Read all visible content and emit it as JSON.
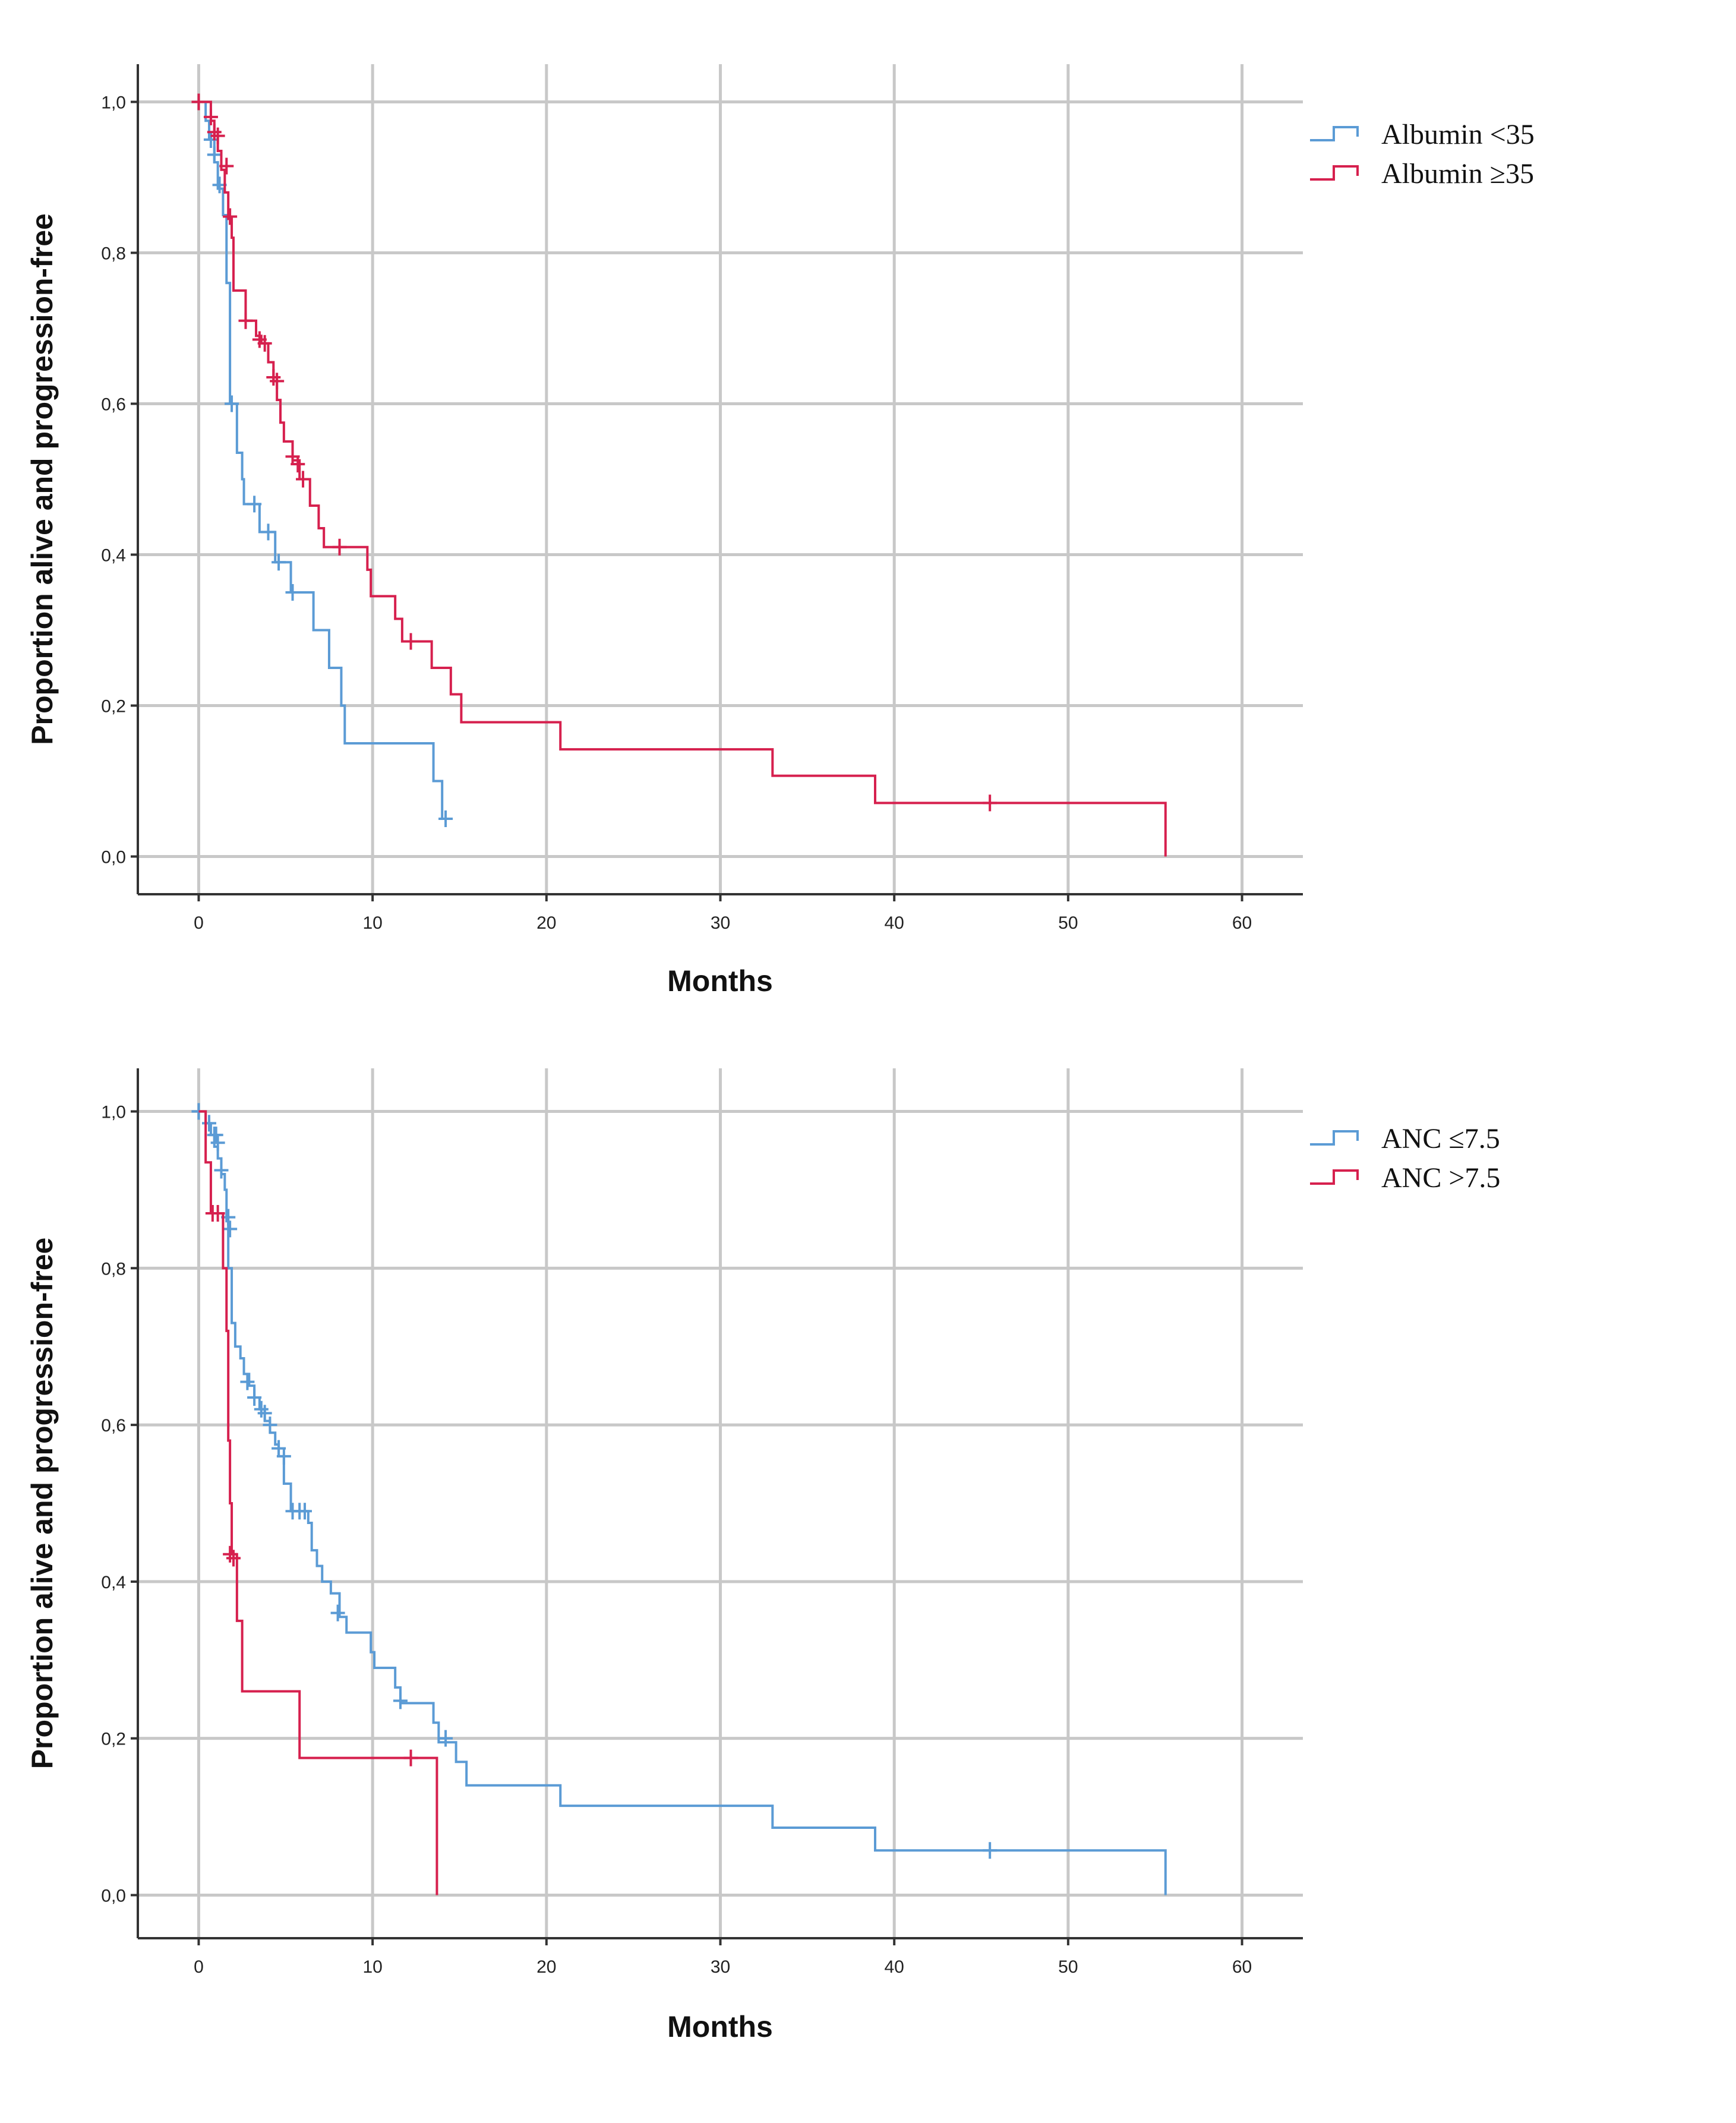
{
  "chart_data": [
    {
      "type": "line",
      "subtype": "kaplan-meier",
      "title": "",
      "xlabel": "Months",
      "ylabel": "Proportion alive and progression-free",
      "xlim": [
        -3.5,
        63.5
      ],
      "ylim": [
        -0.05,
        1.05
      ],
      "xticks": [
        0,
        10,
        20,
        30,
        40,
        50,
        60
      ],
      "xtick_labels": [
        "0",
        "10",
        "20",
        "30",
        "40",
        "50",
        "60"
      ],
      "yticks": [
        0,
        0.2,
        0.4,
        0.6,
        0.8,
        1.0
      ],
      "ytick_labels": [
        "0,0",
        "0,2",
        "0,4",
        "0,6",
        "0,8",
        "1,0"
      ],
      "grid": true,
      "legend_position": "top-right-outside",
      "series": [
        {
          "name": "Albumin <35",
          "color": "#5b9bd5",
          "steps": [
            [
              0,
              1.0
            ],
            [
              0.4,
              0.975
            ],
            [
              0.6,
              0.95
            ],
            [
              0.9,
              0.92
            ],
            [
              1.1,
              0.885
            ],
            [
              1.4,
              0.85
            ],
            [
              1.6,
              0.76
            ],
            [
              1.8,
              0.6
            ],
            [
              2.2,
              0.535
            ],
            [
              2.5,
              0.5
            ],
            [
              2.6,
              0.467
            ],
            [
              3.4,
              0.467
            ],
            [
              3.5,
              0.43
            ],
            [
              4.3,
              0.43
            ],
            [
              4.4,
              0.39
            ],
            [
              5.2,
              0.39
            ],
            [
              5.3,
              0.35
            ],
            [
              6.5,
              0.35
            ],
            [
              6.6,
              0.3
            ],
            [
              7.4,
              0.3
            ],
            [
              7.5,
              0.25
            ],
            [
              8.0,
              0.25
            ],
            [
              8.2,
              0.2
            ],
            [
              8.4,
              0.15
            ],
            [
              13.4,
              0.15
            ],
            [
              13.5,
              0.1
            ],
            [
              13.9,
              0.1
            ],
            [
              14.0,
              0.05
            ],
            [
              14.3,
              0.05
            ]
          ],
          "censored": [
            [
              0.7,
              0.95
            ],
            [
              0.9,
              0.93
            ],
            [
              1.2,
              0.89
            ],
            [
              1.9,
              0.6
            ],
            [
              3.2,
              0.467
            ],
            [
              4.0,
              0.43
            ],
            [
              4.6,
              0.39
            ],
            [
              5.4,
              0.35
            ],
            [
              14.2,
              0.05
            ]
          ]
        },
        {
          "name": "Albumin ≥35",
          "color": "#d6204e",
          "steps": [
            [
              0,
              1.0
            ],
            [
              0.6,
              1.0
            ],
            [
              0.7,
              0.975
            ],
            [
              0.9,
              0.955
            ],
            [
              1.1,
              0.935
            ],
            [
              1.3,
              0.91
            ],
            [
              1.5,
              0.88
            ],
            [
              1.7,
              0.845
            ],
            [
              1.9,
              0.82
            ],
            [
              2.0,
              0.75
            ],
            [
              2.6,
              0.75
            ],
            [
              2.7,
              0.71
            ],
            [
              3.3,
              0.69
            ],
            [
              3.6,
              0.68
            ],
            [
              4.0,
              0.655
            ],
            [
              4.3,
              0.63
            ],
            [
              4.5,
              0.605
            ],
            [
              4.7,
              0.575
            ],
            [
              4.9,
              0.55
            ],
            [
              5.4,
              0.525
            ],
            [
              5.8,
              0.5
            ],
            [
              6.4,
              0.465
            ],
            [
              6.9,
              0.435
            ],
            [
              7.2,
              0.41
            ],
            [
              9.5,
              0.41
            ],
            [
              9.7,
              0.38
            ],
            [
              9.9,
              0.345
            ],
            [
              11.1,
              0.345
            ],
            [
              11.3,
              0.315
            ],
            [
              11.7,
              0.285
            ],
            [
              13.2,
              0.285
            ],
            [
              13.4,
              0.25
            ],
            [
              14.3,
              0.25
            ],
            [
              14.5,
              0.215
            ],
            [
              14.9,
              0.215
            ],
            [
              15.1,
              0.178
            ],
            [
              20.7,
              0.178
            ],
            [
              20.8,
              0.142
            ],
            [
              32.8,
              0.142
            ],
            [
              33.0,
              0.107
            ],
            [
              38.7,
              0.107
            ],
            [
              38.9,
              0.071
            ],
            [
              55.5,
              0.071
            ],
            [
              55.6,
              0.0
            ]
          ],
          "censored": [
            [
              0,
              1.0
            ],
            [
              0.7,
              0.98
            ],
            [
              0.9,
              0.96
            ],
            [
              1.1,
              0.955
            ],
            [
              1.6,
              0.915
            ],
            [
              1.8,
              0.848
            ],
            [
              2.7,
              0.71
            ],
            [
              3.5,
              0.685
            ],
            [
              3.8,
              0.68
            ],
            [
              4.3,
              0.635
            ],
            [
              4.5,
              0.63
            ],
            [
              5.4,
              0.53
            ],
            [
              5.7,
              0.52
            ],
            [
              6.0,
              0.5
            ],
            [
              8.1,
              0.41
            ],
            [
              12.2,
              0.285
            ],
            [
              45.5,
              0.071
            ]
          ]
        }
      ]
    },
    {
      "type": "line",
      "subtype": "kaplan-meier",
      "title": "",
      "xlabel": "Months",
      "ylabel": "Proportion alive and progression-free",
      "xlim": [
        -3.5,
        63.5
      ],
      "ylim": [
        -0.055,
        1.055
      ],
      "xticks": [
        0,
        10,
        20,
        30,
        40,
        50,
        60
      ],
      "xtick_labels": [
        "0",
        "10",
        "20",
        "30",
        "40",
        "50",
        "60"
      ],
      "yticks": [
        0,
        0.2,
        0.4,
        0.6,
        0.8,
        1.0
      ],
      "ytick_labels": [
        "0,0",
        "0,2",
        "0,4",
        "0,6",
        "0,8",
        "1,0"
      ],
      "grid": true,
      "legend_position": "top-right-outside",
      "series": [
        {
          "name": "ANC ≤7.5",
          "color": "#5b9bd5",
          "steps": [
            [
              0,
              1.0
            ],
            [
              0.4,
              0.985
            ],
            [
              0.7,
              0.97
            ],
            [
              0.9,
              0.955
            ],
            [
              1.1,
              0.94
            ],
            [
              1.3,
              0.92
            ],
            [
              1.5,
              0.9
            ],
            [
              1.6,
              0.86
            ],
            [
              1.7,
              0.8
            ],
            [
              1.9,
              0.73
            ],
            [
              2.1,
              0.7
            ],
            [
              2.4,
              0.685
            ],
            [
              2.6,
              0.665
            ],
            [
              2.9,
              0.65
            ],
            [
              3.2,
              0.635
            ],
            [
              3.5,
              0.62
            ],
            [
              3.8,
              0.605
            ],
            [
              4.1,
              0.59
            ],
            [
              4.4,
              0.575
            ],
            [
              4.6,
              0.56
            ],
            [
              4.9,
              0.525
            ],
            [
              5.3,
              0.49
            ],
            [
              5.7,
              0.49
            ],
            [
              6.3,
              0.475
            ],
            [
              6.5,
              0.44
            ],
            [
              6.8,
              0.42
            ],
            [
              7.1,
              0.4
            ],
            [
              7.6,
              0.385
            ],
            [
              8.1,
              0.355
            ],
            [
              8.5,
              0.335
            ],
            [
              9.7,
              0.335
            ],
            [
              9.9,
              0.31
            ],
            [
              10.1,
              0.29
            ],
            [
              11.1,
              0.29
            ],
            [
              11.3,
              0.265
            ],
            [
              11.6,
              0.245
            ],
            [
              13.3,
              0.245
            ],
            [
              13.5,
              0.22
            ],
            [
              13.8,
              0.195
            ],
            [
              14.6,
              0.195
            ],
            [
              14.8,
              0.17
            ],
            [
              15.3,
              0.17
            ],
            [
              15.4,
              0.14
            ],
            [
              20.7,
              0.14
            ],
            [
              20.8,
              0.114
            ],
            [
              32.8,
              0.114
            ],
            [
              33.0,
              0.086
            ],
            [
              38.7,
              0.086
            ],
            [
              38.9,
              0.057
            ],
            [
              55.5,
              0.057
            ],
            [
              55.6,
              0.0
            ]
          ],
          "censored": [
            [
              0,
              1.0
            ],
            [
              0.6,
              0.985
            ],
            [
              0.9,
              0.97
            ],
            [
              1.0,
              0.97
            ],
            [
              1.1,
              0.96
            ],
            [
              1.3,
              0.925
            ],
            [
              1.7,
              0.865
            ],
            [
              1.8,
              0.85
            ],
            [
              2.8,
              0.655
            ],
            [
              3.2,
              0.635
            ],
            [
              3.6,
              0.62
            ],
            [
              3.8,
              0.615
            ],
            [
              4.1,
              0.6
            ],
            [
              4.6,
              0.57
            ],
            [
              4.9,
              0.56
            ],
            [
              5.4,
              0.49
            ],
            [
              5.8,
              0.49
            ],
            [
              6.1,
              0.49
            ],
            [
              8.0,
              0.36
            ],
            [
              11.6,
              0.248
            ],
            [
              14.2,
              0.2
            ],
            [
              45.5,
              0.057
            ]
          ]
        },
        {
          "name": "ANC >7.5",
          "color": "#d6204e",
          "steps": [
            [
              0,
              1.0
            ],
            [
              0.4,
              0.935
            ],
            [
              0.7,
              0.87
            ],
            [
              1.3,
              0.87
            ],
            [
              1.4,
              0.8
            ],
            [
              1.6,
              0.72
            ],
            [
              1.7,
              0.58
            ],
            [
              1.8,
              0.5
            ],
            [
              1.9,
              0.435
            ],
            [
              2.2,
              0.35
            ],
            [
              2.5,
              0.26
            ],
            [
              5.7,
              0.26
            ],
            [
              5.8,
              0.175
            ],
            [
              13.6,
              0.175
            ],
            [
              13.7,
              0.0
            ]
          ],
          "censored": [
            [
              0.8,
              0.87
            ],
            [
              1.1,
              0.87
            ],
            [
              1.8,
              0.435
            ],
            [
              2.0,
              0.43
            ],
            [
              12.2,
              0.175
            ]
          ]
        }
      ]
    }
  ]
}
